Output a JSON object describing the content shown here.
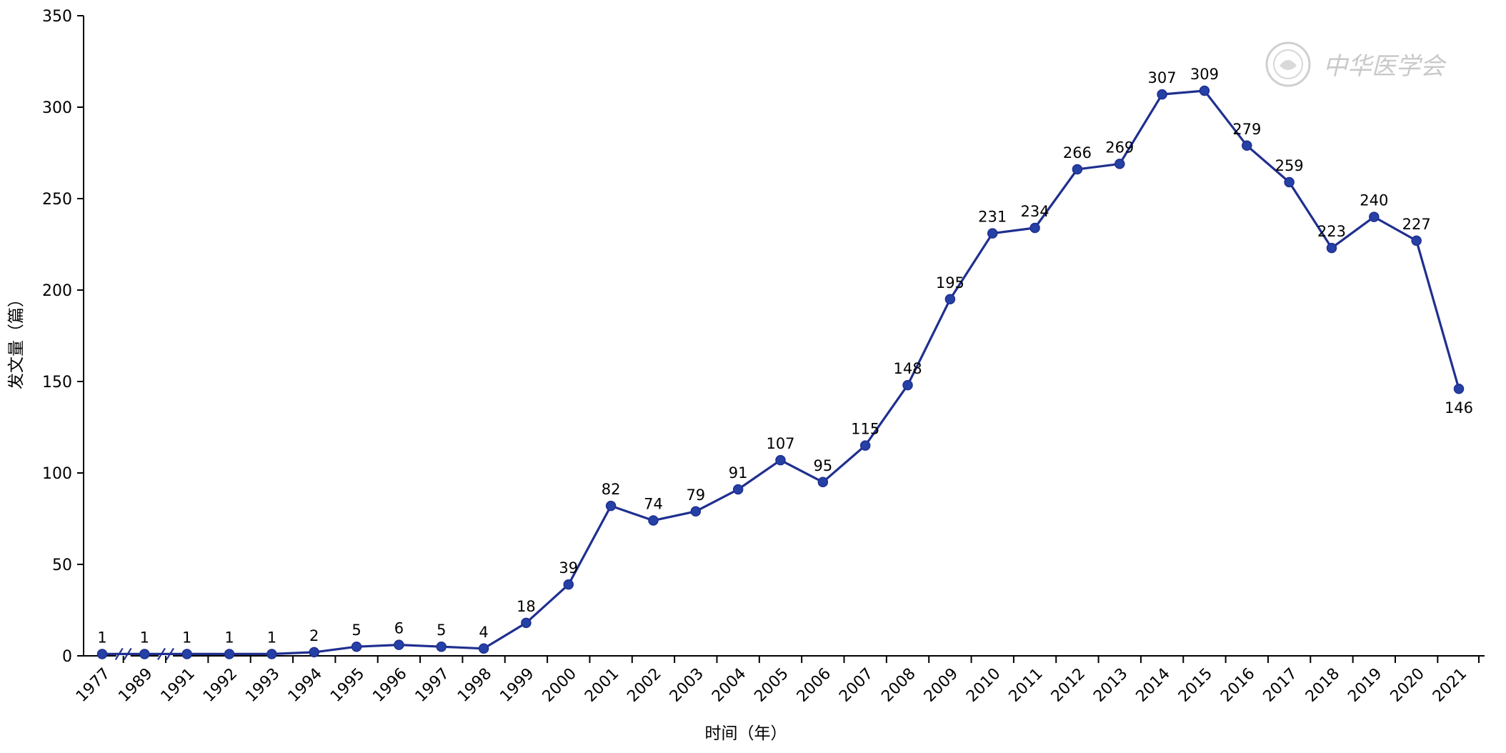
{
  "chart_data": {
    "type": "line",
    "x": [
      "1977",
      "1989",
      "1991",
      "1992",
      "1993",
      "1994",
      "1995",
      "1996",
      "1997",
      "1998",
      "1999",
      "2000",
      "2001",
      "2002",
      "2003",
      "2004",
      "2005",
      "2006",
      "2007",
      "2008",
      "2009",
      "2010",
      "2011",
      "2012",
      "2013",
      "2014",
      "2015",
      "2016",
      "2017",
      "2018",
      "2019",
      "2020",
      "2021"
    ],
    "values": [
      1,
      1,
      1,
      1,
      1,
      2,
      5,
      6,
      5,
      4,
      18,
      39,
      82,
      74,
      79,
      91,
      107,
      95,
      115,
      148,
      195,
      231,
      234,
      266,
      269,
      307,
      309,
      279,
      259,
      223,
      240,
      227,
      146
    ],
    "xlabel": "时间（年）",
    "ylabel": "发文量（篇）",
    "ylim": [
      0,
      350
    ],
    "yticks": [
      0,
      50,
      100,
      150,
      200,
      250,
      300,
      350
    ],
    "axis_breaks_after": [
      "1977",
      "1989"
    ],
    "grid": false,
    "legend": "none",
    "line_color": "#1f2f8f",
    "marker_color": "#2541a6"
  },
  "watermark": {
    "text": "中华医学会",
    "icon": "society-seal-icon",
    "color": "#c9c9c9"
  }
}
